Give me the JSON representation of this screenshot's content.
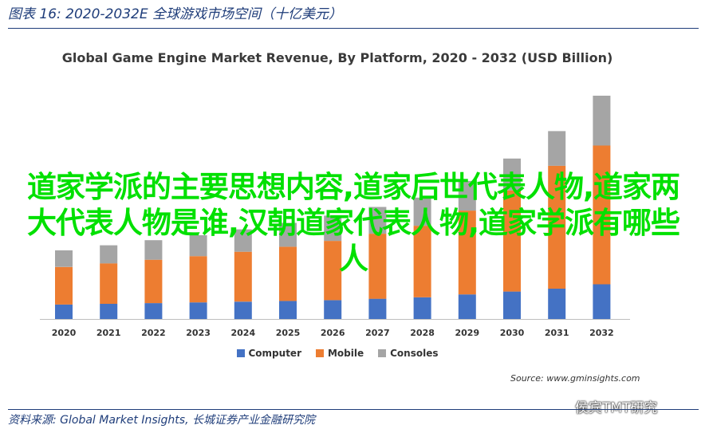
{
  "figure": {
    "caption": "图表 16:  2020-2032E 全球游戏市场空间（十亿美元）",
    "source_note": "资料来源:  Global Market Insights,  长城证券产业金融研究院"
  },
  "overlay": {
    "text": "道家学派的主要思想内容,道家后世代表人物,道家两大代表人物是谁,汉朝道家代表人物,道家学派有哪些人",
    "color": "#00e000"
  },
  "watermark": {
    "text": "侯宾TMT研究"
  },
  "chart_data": {
    "type": "bar",
    "stacked": true,
    "title": "Global Game Engine Market Revenue, By Platform, 2020 - 2032 (USD Billion)",
    "source": "Source: www.gminsights.com",
    "categories": [
      "2020",
      "2021",
      "2022",
      "2023",
      "2024",
      "2025",
      "2026",
      "2027",
      "2028",
      "2029",
      "2030",
      "2031",
      "2032"
    ],
    "series": [
      {
        "name": "Computer",
        "color": "#4472c4",
        "values": [
          2.0,
          2.1,
          2.2,
          2.3,
          2.4,
          2.5,
          2.6,
          2.8,
          3.0,
          3.4,
          3.8,
          4.2,
          4.8
        ]
      },
      {
        "name": "Mobile",
        "color": "#ed7d31",
        "values": [
          5.2,
          5.6,
          6.0,
          6.4,
          6.9,
          7.5,
          8.2,
          9.0,
          9.9,
          11.6,
          14.0,
          17.0,
          19.2
        ]
      },
      {
        "name": "Consoles",
        "color": "#a5a5a5",
        "values": [
          2.3,
          2.5,
          2.7,
          2.9,
          3.1,
          3.3,
          3.5,
          3.7,
          3.9,
          4.1,
          4.4,
          4.8,
          6.9
        ]
      }
    ],
    "ylim": [
      0,
      32
    ],
    "xlabel": "",
    "ylabel": "",
    "grid": false,
    "legend_position": "bottom"
  }
}
